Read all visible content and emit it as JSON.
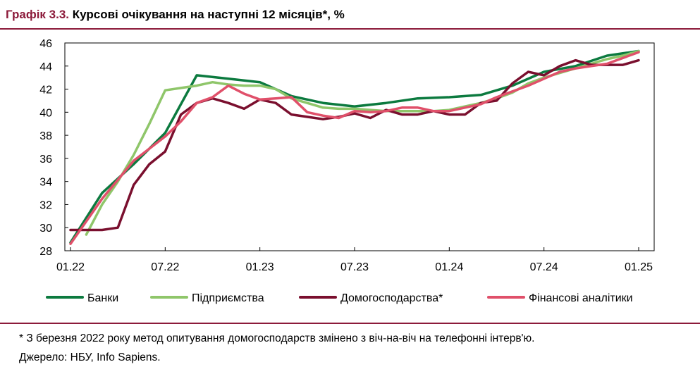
{
  "header": {
    "number": "Графік 3.3.",
    "text": "Курсові очікування на наступні 12 місяців*, %"
  },
  "chart_data": {
    "type": "line",
    "ylim": [
      28,
      46
    ],
    "yticks": [
      "28",
      "30",
      "32",
      "34",
      "36",
      "38",
      "40",
      "42",
      "44",
      "46"
    ],
    "xticks": [
      "01.22",
      "07.22",
      "01.23",
      "07.23",
      "01.24",
      "07.24",
      "01.25"
    ],
    "legend_position": "bottom",
    "series": [
      {
        "name": "Банки",
        "color": "#0c7a3f",
        "x": [
          "01.22",
          "03.22",
          "05.22",
          "07.22",
          "09.22",
          "11.22",
          "01.23",
          "03.23",
          "05.23",
          "07.23",
          "09.23",
          "11.23",
          "01.24",
          "03.24",
          "05.24",
          "07.24",
          "09.24",
          "11.24",
          "01.25"
        ],
        "values": [
          28.7,
          33.0,
          35.5,
          38.2,
          43.2,
          42.9,
          42.6,
          41.4,
          40.8,
          40.5,
          40.8,
          41.2,
          41.3,
          41.5,
          42.3,
          43.5,
          44.0,
          44.9,
          45.3
        ]
      },
      {
        "name": "Підприємства",
        "color": "#8fc66a",
        "x": [
          "02.22",
          "03.22",
          "04.22",
          "05.22",
          "06.22",
          "07.22",
          "08.22",
          "09.22",
          "10.22",
          "11.22",
          "12.22",
          "01.23",
          "02.23",
          "03.23",
          "04.23",
          "05.23",
          "06.23",
          "07.23",
          "08.23",
          "09.23",
          "10.23",
          "11.23",
          "12.23",
          "01.24",
          "02.24",
          "03.24",
          "04.24",
          "05.24",
          "06.24",
          "07.24",
          "08.24",
          "09.24",
          "10.24",
          "11.24",
          "12.24",
          "01.25"
        ],
        "values": [
          29.4,
          32.0,
          34.0,
          36.3,
          39.0,
          41.9,
          42.1,
          42.3,
          42.6,
          42.4,
          42.3,
          42.3,
          42.0,
          41.2,
          40.8,
          40.4,
          40.3,
          40.3,
          40.2,
          40.1,
          40.1,
          40.1,
          40.1,
          40.2,
          40.5,
          40.8,
          41.2,
          41.7,
          42.5,
          43.0,
          43.4,
          43.8,
          44.2,
          44.6,
          44.9,
          45.3
        ]
      },
      {
        "name": "Домогосподарства*",
        "color": "#7a0f2e",
        "x": [
          "01.22",
          "02.22",
          "03.22",
          "04.22",
          "05.22",
          "06.22",
          "07.22",
          "08.22",
          "09.22",
          "10.22",
          "11.22",
          "12.22",
          "01.23",
          "02.23",
          "03.23",
          "04.23",
          "05.23",
          "06.23",
          "07.23",
          "08.23",
          "09.23",
          "10.23",
          "11.23",
          "12.23",
          "01.24",
          "02.24",
          "03.24",
          "04.24",
          "05.24",
          "06.24",
          "07.24",
          "08.24",
          "09.24",
          "10.24",
          "11.24",
          "12.24",
          "01.25"
        ],
        "values": [
          29.8,
          29.8,
          29.8,
          30.0,
          33.7,
          35.5,
          36.6,
          39.8,
          40.8,
          41.2,
          40.8,
          40.3,
          41.1,
          40.8,
          39.8,
          39.6,
          39.4,
          39.6,
          39.9,
          39.5,
          40.2,
          39.8,
          39.8,
          40.1,
          39.8,
          39.8,
          40.8,
          41.0,
          42.5,
          43.5,
          43.2,
          44.0,
          44.5,
          44.1,
          44.1,
          44.1,
          44.5
        ]
      },
      {
        "name": "Фінансові аналітики",
        "color": "#e0506a",
        "x": [
          "01.22",
          "03.22",
          "05.22",
          "07.22",
          "08.22",
          "09.22",
          "10.22",
          "11.22",
          "12.22",
          "01.23",
          "02.23",
          "03.23",
          "04.23",
          "05.23",
          "06.23",
          "07.23",
          "08.23",
          "09.23",
          "10.23",
          "11.23",
          "12.23",
          "01.24",
          "02.24",
          "03.24",
          "04.24",
          "05.24",
          "06.24",
          "07.24",
          "08.24",
          "09.24",
          "10.24",
          "11.24",
          "12.24",
          "01.25"
        ],
        "values": [
          28.6,
          32.5,
          35.8,
          37.9,
          39.2,
          40.8,
          41.3,
          42.3,
          41.6,
          41.1,
          41.2,
          41.3,
          40.0,
          39.7,
          39.5,
          40.1,
          40.0,
          40.1,
          40.4,
          40.4,
          40.1,
          40.1,
          40.4,
          40.7,
          41.3,
          41.8,
          42.3,
          42.9,
          43.5,
          43.8,
          44.0,
          44.2,
          44.7,
          45.2
        ]
      }
    ]
  },
  "footnote": "* З березня 2022 року метод опитування домогосподарств змінено з віч-на-віч на телефонні інтерв'ю.",
  "source": "Джерело: НБУ, Info Sapiens."
}
